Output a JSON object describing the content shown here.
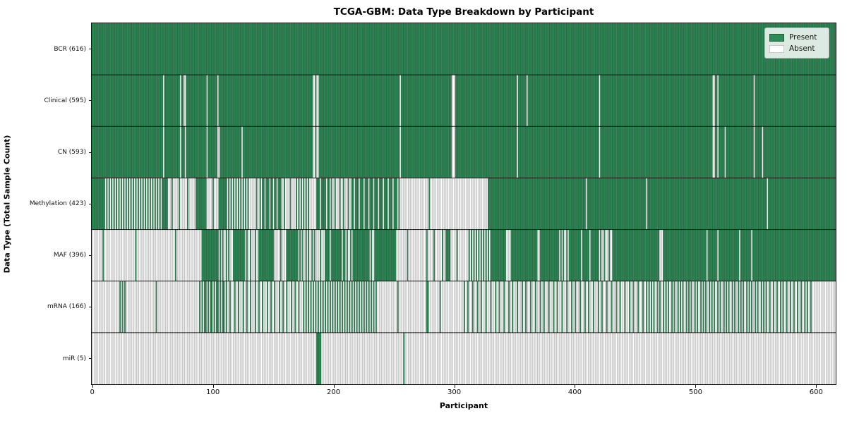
{
  "title": "TCGA-GBM: Data Type Breakdown by Participant",
  "x_axis": {
    "label": "Participant",
    "ticks": [
      0,
      100,
      200,
      300,
      400,
      500,
      600
    ]
  },
  "y_axis": {
    "label": "Data Type (Total Sample Count)"
  },
  "legend": {
    "items": [
      {
        "label": "Present",
        "color": "#2e8b57",
        "edge": "#1f5c3a"
      },
      {
        "label": "Absent",
        "color": "#ffffff",
        "edge": "#c8c8c8"
      }
    ]
  },
  "colors": {
    "present": "#2e8b57",
    "absent": "#ffffff",
    "column_edge": "rgba(0,0,0,0.42)",
    "row_separator": "rgba(10,10,10,0.9)",
    "spine": "#151515"
  },
  "chart_data": {
    "type": "heatmap",
    "subtype": "presence-absence-matrix",
    "title": "TCGA-GBM: Data Type Breakdown by Participant",
    "xlabel": "Participant",
    "ylabel": "Data Type (Total Sample Count)",
    "x_range": [
      0,
      616
    ],
    "n_participants": 616,
    "legend_position": "upper right",
    "segments_format": "[start_participant, end_participant, fraction_present]",
    "rows": [
      {
        "name": "BCR",
        "count": 616,
        "label": "BCR (616)",
        "segments": [
          [
            0,
            616,
            1
          ]
        ]
      },
      {
        "name": "Clinical",
        "count": 595,
        "label": "Clinical (595)",
        "segments": [
          [
            0,
            59,
            1
          ],
          [
            59,
            60,
            0
          ],
          [
            60,
            73,
            1
          ],
          [
            73,
            74,
            0
          ],
          [
            74,
            76,
            1
          ],
          [
            76,
            78,
            0
          ],
          [
            78,
            95,
            1
          ],
          [
            95,
            96,
            0
          ],
          [
            96,
            104,
            1
          ],
          [
            104,
            105,
            0
          ],
          [
            105,
            183,
            1
          ],
          [
            183,
            185,
            0
          ],
          [
            185,
            186,
            1
          ],
          [
            186,
            188,
            0
          ],
          [
            188,
            255,
            1
          ],
          [
            255,
            256,
            0
          ],
          [
            256,
            298,
            1
          ],
          [
            298,
            301,
            0
          ],
          [
            301,
            352,
            1
          ],
          [
            352,
            353,
            0
          ],
          [
            353,
            360,
            1
          ],
          [
            360,
            361,
            0
          ],
          [
            361,
            420,
            1
          ],
          [
            420,
            421,
            0
          ],
          [
            421,
            514,
            1
          ],
          [
            514,
            516,
            0
          ],
          [
            516,
            518,
            1
          ],
          [
            518,
            519,
            0
          ],
          [
            519,
            548,
            1
          ],
          [
            548,
            549,
            0
          ],
          [
            549,
            616,
            1
          ]
        ]
      },
      {
        "name": "CN",
        "count": 593,
        "label": "CN (593)",
        "segments": [
          [
            0,
            59,
            1
          ],
          [
            59,
            60,
            0
          ],
          [
            60,
            73,
            1
          ],
          [
            73,
            74,
            0
          ],
          [
            74,
            77,
            1
          ],
          [
            77,
            78,
            0
          ],
          [
            78,
            95,
            1
          ],
          [
            95,
            96,
            0
          ],
          [
            96,
            104,
            1
          ],
          [
            104,
            106,
            0
          ],
          [
            106,
            124,
            1
          ],
          [
            124,
            125,
            0
          ],
          [
            125,
            183,
            1
          ],
          [
            183,
            185,
            0
          ],
          [
            185,
            186,
            1
          ],
          [
            186,
            188,
            0
          ],
          [
            188,
            255,
            1
          ],
          [
            255,
            256,
            0
          ],
          [
            256,
            298,
            1
          ],
          [
            298,
            301,
            0
          ],
          [
            301,
            352,
            1
          ],
          [
            352,
            353,
            0
          ],
          [
            353,
            420,
            1
          ],
          [
            420,
            421,
            0
          ],
          [
            421,
            514,
            1
          ],
          [
            514,
            516,
            0
          ],
          [
            516,
            518,
            1
          ],
          [
            518,
            519,
            0
          ],
          [
            519,
            524,
            1
          ],
          [
            524,
            525,
            0
          ],
          [
            525,
            548,
            1
          ],
          [
            548,
            549,
            0
          ],
          [
            549,
            555,
            1
          ],
          [
            555,
            556,
            0
          ],
          [
            556,
            616,
            1
          ]
        ]
      },
      {
        "name": "Methylation",
        "count": 423,
        "label": "Methylation (423)",
        "segments": [
          [
            0,
            10,
            1
          ],
          [
            10,
            58,
            0.5
          ],
          [
            58,
            63,
            1
          ],
          [
            63,
            86,
            0.15
          ],
          [
            86,
            95,
            1
          ],
          [
            95,
            105,
            0.1
          ],
          [
            105,
            111,
            1
          ],
          [
            111,
            131,
            0.5
          ],
          [
            131,
            139,
            0.1
          ],
          [
            139,
            157,
            0.7
          ],
          [
            157,
            171,
            0.2
          ],
          [
            171,
            181,
            0.5
          ],
          [
            181,
            187,
            0.1
          ],
          [
            187,
            197,
            0.8
          ],
          [
            197,
            215,
            0.3
          ],
          [
            215,
            255,
            0.75
          ],
          [
            255,
            328,
            0.02
          ],
          [
            328,
            409,
            1
          ],
          [
            409,
            410,
            0
          ],
          [
            410,
            616,
            0.99
          ]
        ]
      },
      {
        "name": "MAF",
        "count": 396,
        "label": "MAF (396)",
        "segments": [
          [
            0,
            20,
            0.05
          ],
          [
            20,
            91,
            0.03
          ],
          [
            91,
            105,
            1
          ],
          [
            105,
            115,
            0.4
          ],
          [
            115,
            117,
            0
          ],
          [
            117,
            127,
            1
          ],
          [
            127,
            139,
            0.3
          ],
          [
            139,
            151,
            1
          ],
          [
            151,
            161,
            0.1
          ],
          [
            161,
            171,
            1
          ],
          [
            171,
            187,
            0.4
          ],
          [
            187,
            193,
            0.2
          ],
          [
            193,
            210,
            0.9
          ],
          [
            210,
            216,
            0.3
          ],
          [
            216,
            230,
            1
          ],
          [
            230,
            235,
            0.3
          ],
          [
            235,
            252,
            1
          ],
          [
            252,
            274,
            0.05
          ],
          [
            274,
            293,
            0.15
          ],
          [
            293,
            297,
            1
          ],
          [
            297,
            312,
            0.1
          ],
          [
            312,
            330,
            0.5
          ],
          [
            330,
            343,
            1
          ],
          [
            343,
            347,
            0
          ],
          [
            347,
            369,
            1
          ],
          [
            369,
            371,
            0
          ],
          [
            371,
            387,
            1
          ],
          [
            387,
            396,
            0.4
          ],
          [
            396,
            405,
            1
          ],
          [
            405,
            406,
            0
          ],
          [
            406,
            412,
            1
          ],
          [
            412,
            413,
            0
          ],
          [
            413,
            420,
            1
          ],
          [
            420,
            431,
            0.3
          ],
          [
            431,
            470,
            1
          ],
          [
            470,
            473,
            0
          ],
          [
            473,
            509,
            1
          ],
          [
            509,
            510,
            0
          ],
          [
            510,
            518,
            1
          ],
          [
            518,
            519,
            0
          ],
          [
            519,
            536,
            1
          ],
          [
            536,
            537,
            0
          ],
          [
            537,
            546,
            1
          ],
          [
            546,
            547,
            0
          ],
          [
            547,
            616,
            1
          ]
        ]
      },
      {
        "name": "mRNA",
        "count": 166,
        "label": "mRNA (166)",
        "segments": [
          [
            0,
            23,
            0.02
          ],
          [
            23,
            29,
            0.5
          ],
          [
            29,
            89,
            0.02
          ],
          [
            89,
            110,
            0.6
          ],
          [
            110,
            175,
            0.3
          ],
          [
            175,
            237,
            0.5
          ],
          [
            237,
            277,
            0.03
          ],
          [
            277,
            279,
            1
          ],
          [
            279,
            310,
            0.05
          ],
          [
            310,
            460,
            0.27
          ],
          [
            460,
            560,
            0.42
          ],
          [
            560,
            596,
            0.35
          ],
          [
            596,
            616,
            0.02
          ]
        ]
      },
      {
        "name": "miR",
        "count": 5,
        "label": "miR (5)",
        "segments": [
          [
            0,
            186,
            0
          ],
          [
            186,
            190,
            1
          ],
          [
            190,
            258,
            0
          ],
          [
            258,
            259,
            1
          ],
          [
            259,
            616,
            0
          ]
        ]
      }
    ]
  }
}
